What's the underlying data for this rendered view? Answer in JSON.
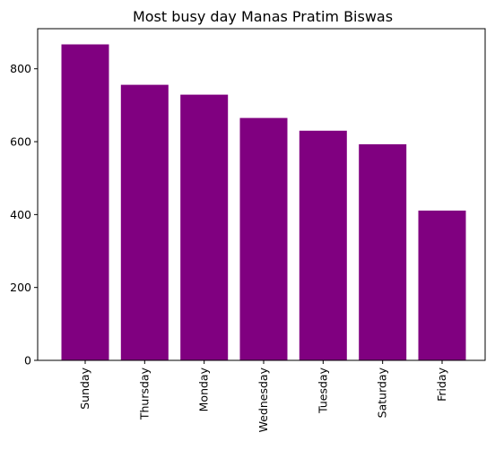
{
  "chart_data": {
    "type": "bar",
    "title": "Most busy day Manas Pratim Biswas",
    "xlabel": "",
    "ylabel": "",
    "categories": [
      "Sunday",
      "Thursday",
      "Monday",
      "Wednesday",
      "Tuesday",
      "Saturday",
      "Friday"
    ],
    "values": [
      867,
      756,
      729,
      665,
      630,
      593,
      411
    ],
    "ylim": [
      0,
      910
    ],
    "yticks": [
      0,
      200,
      400,
      600,
      800
    ],
    "bar_color": "#800080",
    "grid": false,
    "legend": "none"
  }
}
